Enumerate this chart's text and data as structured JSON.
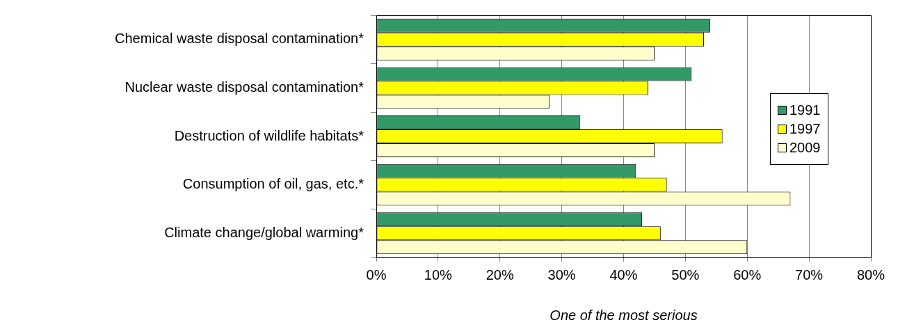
{
  "chart_data": {
    "type": "bar",
    "orientation": "horizontal",
    "xlabel": "One of the most serious",
    "categories": [
      "Chemical waste disposal contamination*",
      "Nuclear waste disposal contamination*",
      "Destruction of wildlife habitats*",
      "Consumption of oil, gas, etc.*",
      "Climate change/global warming*"
    ],
    "series": [
      {
        "name": "1991",
        "color": "#339966",
        "values": [
          54,
          51,
          33,
          42,
          43
        ]
      },
      {
        "name": "1997",
        "color": "#ffff00",
        "values": [
          53,
          44,
          56,
          47,
          46
        ]
      },
      {
        "name": "2009",
        "color": "#ffffcc",
        "values": [
          45,
          28,
          45,
          67,
          60
        ]
      }
    ],
    "xlim": [
      0,
      80
    ],
    "xticks": [
      {
        "value": 0,
        "label": "0%"
      },
      {
        "value": 10,
        "label": "10%"
      },
      {
        "value": 20,
        "label": "20%"
      },
      {
        "value": 30,
        "label": "30%"
      },
      {
        "value": 40,
        "label": "40%"
      },
      {
        "value": 50,
        "label": "50%"
      },
      {
        "value": 60,
        "label": "60%"
      },
      {
        "value": 70,
        "label": "70%"
      },
      {
        "value": 80,
        "label": "80%"
      }
    ],
    "grid": "x",
    "legend": "right"
  }
}
